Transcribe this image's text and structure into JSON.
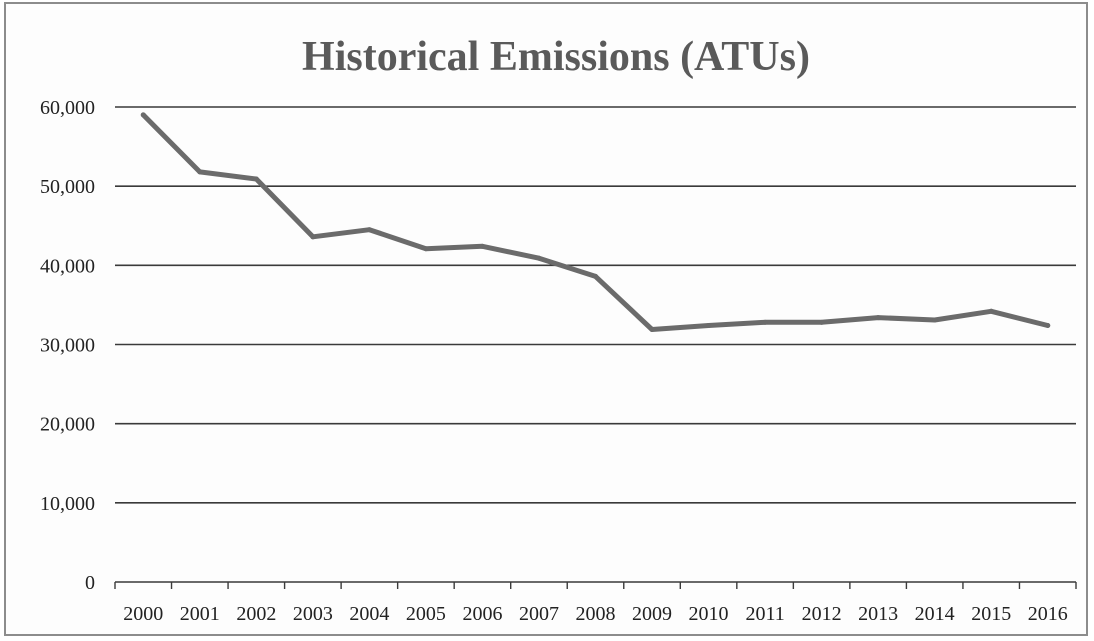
{
  "chart_data": {
    "type": "line",
    "title": "Historical Emissions (ATUs)",
    "xlabel": "",
    "ylabel": "",
    "categories": [
      "2000",
      "2001",
      "2002",
      "2003",
      "2004",
      "2005",
      "2006",
      "2007",
      "2008",
      "2009",
      "2010",
      "2011",
      "2012",
      "2013",
      "2014",
      "2015",
      "2016"
    ],
    "series": [
      {
        "values": [
          59000,
          51800,
          50900,
          43600,
          44500,
          42100,
          42400,
          40900,
          38600,
          31900,
          32400,
          32800,
          32800,
          33400,
          33100,
          34200,
          32400
        ],
        "color": "#6b6b6b"
      }
    ],
    "ylim": [
      0,
      60000
    ],
    "yticks": [
      0,
      10000,
      20000,
      30000,
      40000,
      50000,
      60000
    ],
    "ytick_labels": [
      "0",
      "10,000",
      "20,000",
      "30,000",
      "40,000",
      "50,000",
      "60,000"
    ],
    "grid": true,
    "legend": "none"
  }
}
